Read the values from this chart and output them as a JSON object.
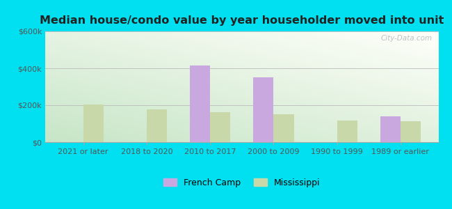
{
  "title": "Median house/condo value by year householder moved into unit",
  "categories": [
    "2021 or later",
    "2018 to 2020",
    "2010 to 2017",
    "2000 to 2009",
    "1990 to 1999",
    "1989 or earlier"
  ],
  "french_camp": [
    0,
    0,
    415000,
    350000,
    0,
    138000
  ],
  "mississippi": [
    205000,
    178000,
    163000,
    152000,
    118000,
    112000
  ],
  "french_camp_color": "#c9a8e0",
  "mississippi_color": "#c8d8a8",
  "background_outer": "#00e0f0",
  "ylim": [
    0,
    600000
  ],
  "yticks": [
    0,
    200000,
    400000,
    600000
  ],
  "ytick_labels": [
    "$0",
    "$200k",
    "$400k",
    "$600k"
  ],
  "legend_french_camp": "French Camp",
  "legend_mississippi": "Mississippi",
  "bar_width": 0.32,
  "title_fontsize": 11.5,
  "tick_fontsize": 8,
  "legend_fontsize": 9,
  "watermark_text": "City-Data.com"
}
